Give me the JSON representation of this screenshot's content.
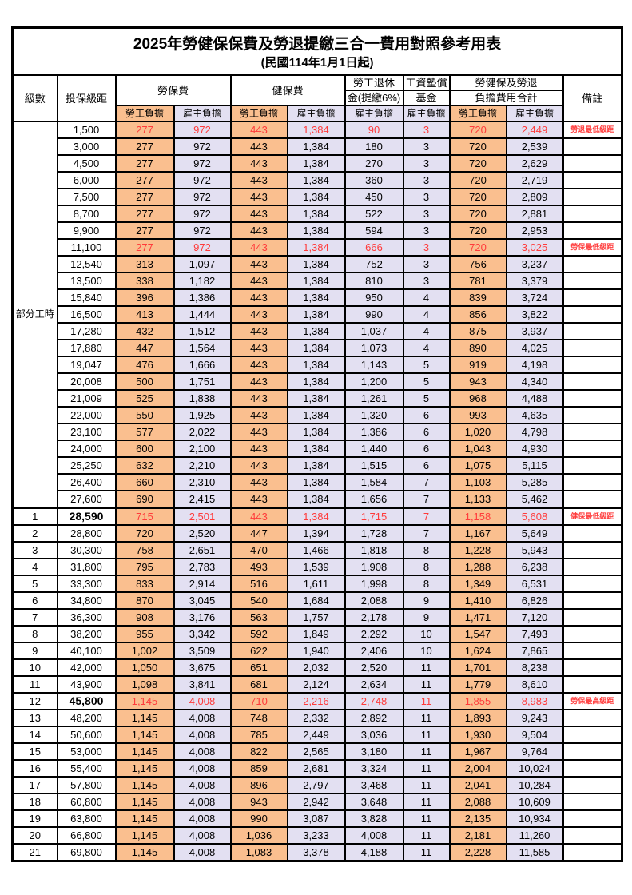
{
  "title": "2025年勞健保保費及勞退提繳三合一費用對照參考用表",
  "subtitle": "(民國114年1月1日起)",
  "colors": {
    "employee_col_bg": "#FABF8F",
    "employer_col_bg": "#E3E0F2",
    "highlight_text": "#FF3B3B",
    "border": "#000000"
  },
  "header": {
    "level": "級數",
    "bracket": "投保級距",
    "labor_insurance": "勞保費",
    "health_insurance": "健保費",
    "pension_line1": "勞工退休",
    "pension_line2": "金(提繳6%)",
    "wage_fund_line1": "工資墊償",
    "wage_fund_line2": "基金",
    "total_line1": "勞健保及勞退",
    "total_line2": "負擔費用合計",
    "remark": "備註",
    "employee_label": "勞工負擔",
    "employer_label": "雇主負擔"
  },
  "part_time_label": "部分工時",
  "part_time_rows": [
    {
      "bracket": "1,500",
      "li_emp": "277",
      "li_er": "972",
      "hi_emp": "443",
      "hi_er": "1,384",
      "pension": "90",
      "fund": "3",
      "tot_emp": "720",
      "tot_er": "2,449",
      "remark": "勞退最低級距",
      "red": true
    },
    {
      "bracket": "3,000",
      "li_emp": "277",
      "li_er": "972",
      "hi_emp": "443",
      "hi_er": "1,384",
      "pension": "180",
      "fund": "3",
      "tot_emp": "720",
      "tot_er": "2,539",
      "remark": "",
      "red": false
    },
    {
      "bracket": "4,500",
      "li_emp": "277",
      "li_er": "972",
      "hi_emp": "443",
      "hi_er": "1,384",
      "pension": "270",
      "fund": "3",
      "tot_emp": "720",
      "tot_er": "2,629",
      "remark": "",
      "red": false
    },
    {
      "bracket": "6,000",
      "li_emp": "277",
      "li_er": "972",
      "hi_emp": "443",
      "hi_er": "1,384",
      "pension": "360",
      "fund": "3",
      "tot_emp": "720",
      "tot_er": "2,719",
      "remark": "",
      "red": false
    },
    {
      "bracket": "7,500",
      "li_emp": "277",
      "li_er": "972",
      "hi_emp": "443",
      "hi_er": "1,384",
      "pension": "450",
      "fund": "3",
      "tot_emp": "720",
      "tot_er": "2,809",
      "remark": "",
      "red": false
    },
    {
      "bracket": "8,700",
      "li_emp": "277",
      "li_er": "972",
      "hi_emp": "443",
      "hi_er": "1,384",
      "pension": "522",
      "fund": "3",
      "tot_emp": "720",
      "tot_er": "2,881",
      "remark": "",
      "red": false
    },
    {
      "bracket": "9,900",
      "li_emp": "277",
      "li_er": "972",
      "hi_emp": "443",
      "hi_er": "1,384",
      "pension": "594",
      "fund": "3",
      "tot_emp": "720",
      "tot_er": "2,953",
      "remark": "",
      "red": false
    },
    {
      "bracket": "11,100",
      "li_emp": "277",
      "li_er": "972",
      "hi_emp": "443",
      "hi_er": "1,384",
      "pension": "666",
      "fund": "3",
      "tot_emp": "720",
      "tot_er": "3,025",
      "remark": "勞保最低級距",
      "red": true
    },
    {
      "bracket": "12,540",
      "li_emp": "313",
      "li_er": "1,097",
      "hi_emp": "443",
      "hi_er": "1,384",
      "pension": "752",
      "fund": "3",
      "tot_emp": "756",
      "tot_er": "3,237",
      "remark": "",
      "red": false
    },
    {
      "bracket": "13,500",
      "li_emp": "338",
      "li_er": "1,182",
      "hi_emp": "443",
      "hi_er": "1,384",
      "pension": "810",
      "fund": "3",
      "tot_emp": "781",
      "tot_er": "3,379",
      "remark": "",
      "red": false
    },
    {
      "bracket": "15,840",
      "li_emp": "396",
      "li_er": "1,386",
      "hi_emp": "443",
      "hi_er": "1,384",
      "pension": "950",
      "fund": "4",
      "tot_emp": "839",
      "tot_er": "3,724",
      "remark": "",
      "red": false
    },
    {
      "bracket": "16,500",
      "li_emp": "413",
      "li_er": "1,444",
      "hi_emp": "443",
      "hi_er": "1,384",
      "pension": "990",
      "fund": "4",
      "tot_emp": "856",
      "tot_er": "3,822",
      "remark": "",
      "red": false
    },
    {
      "bracket": "17,280",
      "li_emp": "432",
      "li_er": "1,512",
      "hi_emp": "443",
      "hi_er": "1,384",
      "pension": "1,037",
      "fund": "4",
      "tot_emp": "875",
      "tot_er": "3,937",
      "remark": "",
      "red": false
    },
    {
      "bracket": "17,880",
      "li_emp": "447",
      "li_er": "1,564",
      "hi_emp": "443",
      "hi_er": "1,384",
      "pension": "1,073",
      "fund": "4",
      "tot_emp": "890",
      "tot_er": "4,025",
      "remark": "",
      "red": false
    },
    {
      "bracket": "19,047",
      "li_emp": "476",
      "li_er": "1,666",
      "hi_emp": "443",
      "hi_er": "1,384",
      "pension": "1,143",
      "fund": "5",
      "tot_emp": "919",
      "tot_er": "4,198",
      "remark": "",
      "red": false
    },
    {
      "bracket": "20,008",
      "li_emp": "500",
      "li_er": "1,751",
      "hi_emp": "443",
      "hi_er": "1,384",
      "pension": "1,200",
      "fund": "5",
      "tot_emp": "943",
      "tot_er": "4,340",
      "remark": "",
      "red": false
    },
    {
      "bracket": "21,009",
      "li_emp": "525",
      "li_er": "1,838",
      "hi_emp": "443",
      "hi_er": "1,384",
      "pension": "1,261",
      "fund": "5",
      "tot_emp": "968",
      "tot_er": "4,488",
      "remark": "",
      "red": false
    },
    {
      "bracket": "22,000",
      "li_emp": "550",
      "li_er": "1,925",
      "hi_emp": "443",
      "hi_er": "1,384",
      "pension": "1,320",
      "fund": "6",
      "tot_emp": "993",
      "tot_er": "4,635",
      "remark": "",
      "red": false
    },
    {
      "bracket": "23,100",
      "li_emp": "577",
      "li_er": "2,022",
      "hi_emp": "443",
      "hi_er": "1,384",
      "pension": "1,386",
      "fund": "6",
      "tot_emp": "1,020",
      "tot_er": "4,798",
      "remark": "",
      "red": false
    },
    {
      "bracket": "24,000",
      "li_emp": "600",
      "li_er": "2,100",
      "hi_emp": "443",
      "hi_er": "1,384",
      "pension": "1,440",
      "fund": "6",
      "tot_emp": "1,043",
      "tot_er": "4,930",
      "remark": "",
      "red": false
    },
    {
      "bracket": "25,250",
      "li_emp": "632",
      "li_er": "2,210",
      "hi_emp": "443",
      "hi_er": "1,384",
      "pension": "1,515",
      "fund": "6",
      "tot_emp": "1,075",
      "tot_er": "5,115",
      "remark": "",
      "red": false
    },
    {
      "bracket": "26,400",
      "li_emp": "660",
      "li_er": "2,310",
      "hi_emp": "443",
      "hi_er": "1,384",
      "pension": "1,584",
      "fund": "7",
      "tot_emp": "1,103",
      "tot_er": "5,285",
      "remark": "",
      "red": false
    },
    {
      "bracket": "27,600",
      "li_emp": "690",
      "li_er": "2,415",
      "hi_emp": "443",
      "hi_er": "1,384",
      "pension": "1,656",
      "fund": "7",
      "tot_emp": "1,133",
      "tot_er": "5,462",
      "remark": "",
      "red": false
    }
  ],
  "numbered_rows": [
    {
      "level": "1",
      "bracket": "28,590",
      "li_emp": "715",
      "li_er": "2,501",
      "hi_emp": "443",
      "hi_er": "1,384",
      "pension": "1,715",
      "fund": "7",
      "tot_emp": "1,158",
      "tot_er": "5,608",
      "remark": "健保最低級距",
      "red": true,
      "bold": true,
      "thick_top": true
    },
    {
      "level": "2",
      "bracket": "28,800",
      "li_emp": "720",
      "li_er": "2,520",
      "hi_emp": "447",
      "hi_er": "1,394",
      "pension": "1,728",
      "fund": "7",
      "tot_emp": "1,167",
      "tot_er": "5,649",
      "remark": "",
      "red": false
    },
    {
      "level": "3",
      "bracket": "30,300",
      "li_emp": "758",
      "li_er": "2,651",
      "hi_emp": "470",
      "hi_er": "1,466",
      "pension": "1,818",
      "fund": "8",
      "tot_emp": "1,228",
      "tot_er": "5,943",
      "remark": "",
      "red": false
    },
    {
      "level": "4",
      "bracket": "31,800",
      "li_emp": "795",
      "li_er": "2,783",
      "hi_emp": "493",
      "hi_er": "1,539",
      "pension": "1,908",
      "fund": "8",
      "tot_emp": "1,288",
      "tot_er": "6,238",
      "remark": "",
      "red": false
    },
    {
      "level": "5",
      "bracket": "33,300",
      "li_emp": "833",
      "li_er": "2,914",
      "hi_emp": "516",
      "hi_er": "1,611",
      "pension": "1,998",
      "fund": "8",
      "tot_emp": "1,349",
      "tot_er": "6,531",
      "remark": "",
      "red": false
    },
    {
      "level": "6",
      "bracket": "34,800",
      "li_emp": "870",
      "li_er": "3,045",
      "hi_emp": "540",
      "hi_er": "1,684",
      "pension": "2,088",
      "fund": "9",
      "tot_emp": "1,410",
      "tot_er": "6,826",
      "remark": "",
      "red": false
    },
    {
      "level": "7",
      "bracket": "36,300",
      "li_emp": "908",
      "li_er": "3,176",
      "hi_emp": "563",
      "hi_er": "1,757",
      "pension": "2,178",
      "fund": "9",
      "tot_emp": "1,471",
      "tot_er": "7,120",
      "remark": "",
      "red": false
    },
    {
      "level": "8",
      "bracket": "38,200",
      "li_emp": "955",
      "li_er": "3,342",
      "hi_emp": "592",
      "hi_er": "1,849",
      "pension": "2,292",
      "fund": "10",
      "tot_emp": "1,547",
      "tot_er": "7,493",
      "remark": "",
      "red": false
    },
    {
      "level": "9",
      "bracket": "40,100",
      "li_emp": "1,002",
      "li_er": "3,509",
      "hi_emp": "622",
      "hi_er": "1,940",
      "pension": "2,406",
      "fund": "10",
      "tot_emp": "1,624",
      "tot_er": "7,865",
      "remark": "",
      "red": false
    },
    {
      "level": "10",
      "bracket": "42,000",
      "li_emp": "1,050",
      "li_er": "3,675",
      "hi_emp": "651",
      "hi_er": "2,032",
      "pension": "2,520",
      "fund": "11",
      "tot_emp": "1,701",
      "tot_er": "8,238",
      "remark": "",
      "red": false
    },
    {
      "level": "11",
      "bracket": "43,900",
      "li_emp": "1,098",
      "li_er": "3,841",
      "hi_emp": "681",
      "hi_er": "2,124",
      "pension": "2,634",
      "fund": "11",
      "tot_emp": "1,779",
      "tot_er": "8,610",
      "remark": "",
      "red": false
    },
    {
      "level": "12",
      "bracket": "45,800",
      "li_emp": "1,145",
      "li_er": "4,008",
      "hi_emp": "710",
      "hi_er": "2,216",
      "pension": "2,748",
      "fund": "11",
      "tot_emp": "1,855",
      "tot_er": "8,983",
      "remark": "勞保最高級距",
      "red": true,
      "bold": true
    },
    {
      "level": "13",
      "bracket": "48,200",
      "li_emp": "1,145",
      "li_er": "4,008",
      "hi_emp": "748",
      "hi_er": "2,332",
      "pension": "2,892",
      "fund": "11",
      "tot_emp": "1,893",
      "tot_er": "9,243",
      "remark": "",
      "red": false
    },
    {
      "level": "14",
      "bracket": "50,600",
      "li_emp": "1,145",
      "li_er": "4,008",
      "hi_emp": "785",
      "hi_er": "2,449",
      "pension": "3,036",
      "fund": "11",
      "tot_emp": "1,930",
      "tot_er": "9,504",
      "remark": "",
      "red": false
    },
    {
      "level": "15",
      "bracket": "53,000",
      "li_emp": "1,145",
      "li_er": "4,008",
      "hi_emp": "822",
      "hi_er": "2,565",
      "pension": "3,180",
      "fund": "11",
      "tot_emp": "1,967",
      "tot_er": "9,764",
      "remark": "",
      "red": false
    },
    {
      "level": "16",
      "bracket": "55,400",
      "li_emp": "1,145",
      "li_er": "4,008",
      "hi_emp": "859",
      "hi_er": "2,681",
      "pension": "3,324",
      "fund": "11",
      "tot_emp": "2,004",
      "tot_er": "10,024",
      "remark": "",
      "red": false
    },
    {
      "level": "17",
      "bracket": "57,800",
      "li_emp": "1,145",
      "li_er": "4,008",
      "hi_emp": "896",
      "hi_er": "2,797",
      "pension": "3,468",
      "fund": "11",
      "tot_emp": "2,041",
      "tot_er": "10,284",
      "remark": "",
      "red": false
    },
    {
      "level": "18",
      "bracket": "60,800",
      "li_emp": "1,145",
      "li_er": "4,008",
      "hi_emp": "943",
      "hi_er": "2,942",
      "pension": "3,648",
      "fund": "11",
      "tot_emp": "2,088",
      "tot_er": "10,609",
      "remark": "",
      "red": false
    },
    {
      "level": "19",
      "bracket": "63,800",
      "li_emp": "1,145",
      "li_er": "4,008",
      "hi_emp": "990",
      "hi_er": "3,087",
      "pension": "3,828",
      "fund": "11",
      "tot_emp": "2,135",
      "tot_er": "10,934",
      "remark": "",
      "red": false
    },
    {
      "level": "20",
      "bracket": "66,800",
      "li_emp": "1,145",
      "li_er": "4,008",
      "hi_emp": "1,036",
      "hi_er": "3,233",
      "pension": "4,008",
      "fund": "11",
      "tot_emp": "2,181",
      "tot_er": "11,260",
      "remark": "",
      "red": false
    },
    {
      "level": "21",
      "bracket": "69,800",
      "li_emp": "1,145",
      "li_er": "4,008",
      "hi_emp": "1,083",
      "hi_er": "3,378",
      "pension": "4,188",
      "fund": "11",
      "tot_emp": "2,228",
      "tot_er": "11,585",
      "remark": "",
      "red": false
    }
  ]
}
